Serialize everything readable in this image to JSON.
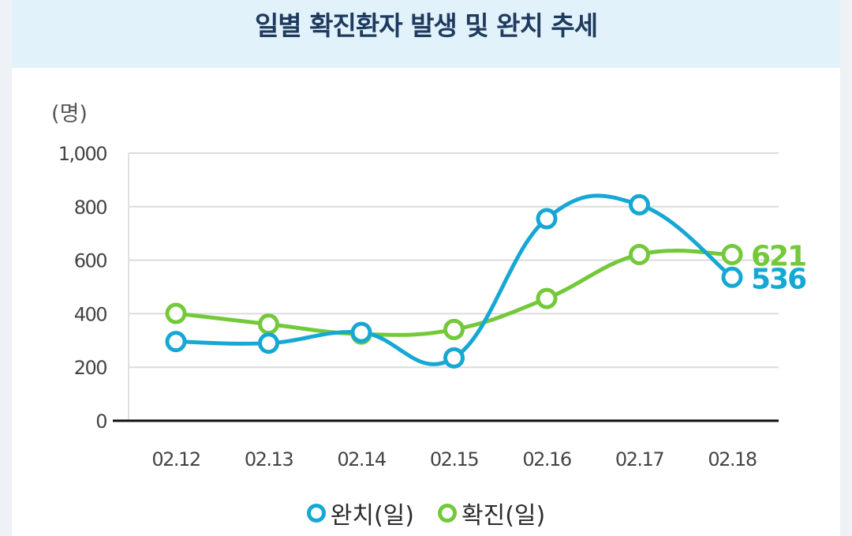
{
  "chart_data": {
    "type": "line",
    "title": "일별 확진환자 발생 및 완치 추세",
    "ylabel": "(명)",
    "xlabel": "",
    "categories": [
      "02.12",
      "02.13",
      "02.14",
      "02.15",
      "02.16",
      "02.17",
      "02.18"
    ],
    "y_ticks": [
      0,
      200,
      400,
      600,
      800,
      1000
    ],
    "y_tick_labels": [
      "0",
      "200",
      "400",
      "600",
      "800",
      "1,000"
    ],
    "ylim": [
      0,
      1000
    ],
    "grid": true,
    "legend_position": "bottom-center",
    "series": [
      {
        "name": "완치(일)",
        "color": "#16a8d4",
        "values": [
          296,
          290,
          330,
          235,
          755,
          807,
          536
        ],
        "end_label": "536"
      },
      {
        "name": "확진(일)",
        "color": "#73c93a",
        "values": [
          401,
          361,
          324,
          341,
          457,
          621,
          621
        ],
        "end_label": "621"
      }
    ]
  }
}
